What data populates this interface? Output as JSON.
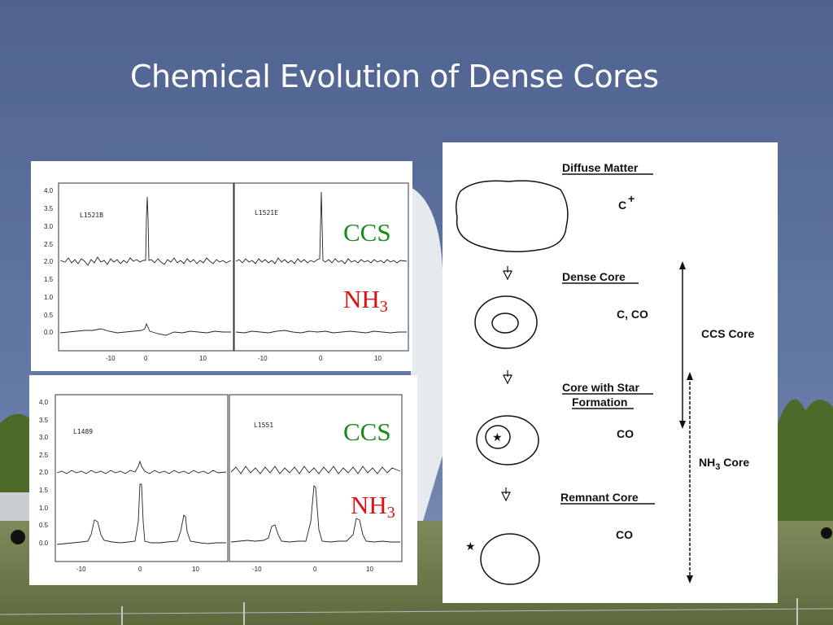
{
  "slide": {
    "title": "Chemical Evolution of Dense Cores"
  },
  "colors": {
    "sky": "#5a6d99",
    "grass": "#6b7a4c",
    "trees": "#4e6a2a",
    "ccs_label": "#1a8a1a",
    "nh3_label": "#e01010"
  },
  "spectra_top": {
    "y_ticks": [
      "4.0",
      "3.5",
      "3.0",
      "2.5",
      "2.0",
      "1.5",
      "1.0",
      "0.5",
      "0.0"
    ],
    "left_plot": {
      "source": "L1521B",
      "x_ticks": [
        "-10",
        "0",
        "10"
      ]
    },
    "right_plot": {
      "source": "L1521E",
      "x_ticks": [
        "-10",
        "0",
        "10"
      ]
    },
    "ccs_label": "CCS",
    "nh3_label": "NH",
    "nh3_sub": "3"
  },
  "spectra_bottom": {
    "y_ticks": [
      "4.0",
      "3.5",
      "3.0",
      "2.5",
      "2.0",
      "1.5",
      "1.0",
      "0.5",
      "0.0"
    ],
    "left_plot": {
      "source": "L1489",
      "x_ticks": [
        "-10",
        "0",
        "10"
      ]
    },
    "right_plot": {
      "source": "L1551",
      "x_ticks": [
        "-10",
        "0",
        "10"
      ]
    },
    "ccs_label": "CCS",
    "nh3_label": "NH",
    "nh3_sub": "3"
  },
  "evolution": {
    "stages": [
      {
        "label": "Diffuse Matter",
        "molecule": "C",
        "molecule_sup": "+"
      },
      {
        "label": "Dense Core",
        "molecule": "C, CO"
      },
      {
        "label_line1": "Core with Star",
        "label_line2": "Formation",
        "molecule": "CO"
      },
      {
        "label": "Remnant Core",
        "molecule": "CO"
      }
    ],
    "ccs_core_label": "CCS Core",
    "nh3_core_label": "NH",
    "nh3_core_sub": "3",
    "nh3_core_suffix": " Core"
  }
}
